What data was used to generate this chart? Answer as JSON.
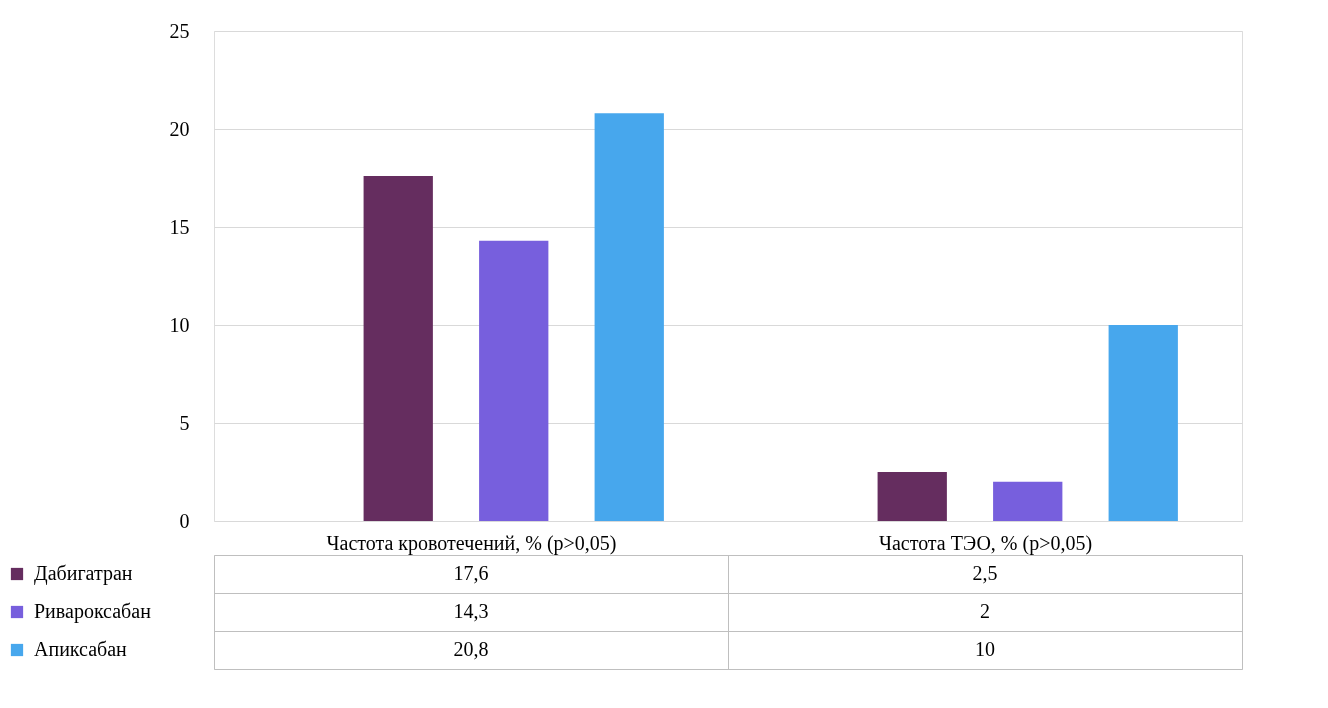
{
  "chart_data": {
    "type": "bar",
    "categories": [
      "Частота кровотечений, % (p>0,05)",
      "Частота ТЭО, % (p>0,05)"
    ],
    "series": [
      {
        "name": "Дабигатран",
        "color": "#652d5f",
        "values": [
          17.6,
          2.5
        ],
        "value_labels": [
          "17,6",
          "2,5"
        ]
      },
      {
        "name": "Ривароксабан",
        "color": "#775fdd",
        "values": [
          14.3,
          2
        ],
        "value_labels": [
          "14,3",
          "2"
        ]
      },
      {
        "name": "Апиксабан",
        "color": "#47a7ed",
        "values": [
          20.8,
          10
        ],
        "value_labels": [
          "20,8",
          "10"
        ]
      }
    ],
    "ylim": [
      0,
      25
    ],
    "yticks": [
      0,
      5,
      10,
      15,
      20,
      25
    ],
    "grid": "y",
    "legend": "bottom left"
  }
}
